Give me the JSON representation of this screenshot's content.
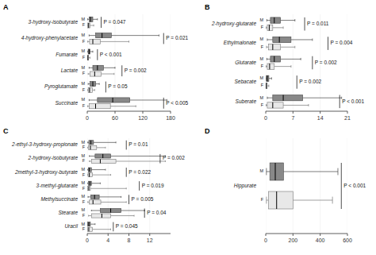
{
  "chart_data": [
    {
      "type": "box",
      "title": "A",
      "orientation": "horizontal",
      "categories": [
        "3-hydroxy-isobutyrate",
        "4-hydroxy-phenylacetate",
        "Fumarate",
        "Lactate",
        "Pyroglutamate",
        "Succinate"
      ],
      "series": [
        {
          "name": "M",
          "color": "#888888",
          "q1": [
            4,
            18,
            2,
            12,
            6,
            22
          ],
          "med": [
            7,
            32,
            4,
            22,
            12,
            55
          ],
          "q3": [
            12,
            52,
            6,
            35,
            18,
            92
          ],
          "whislo": [
            1,
            4,
            0.5,
            4,
            2,
            4
          ],
          "whishi": [
            22,
            155,
            12,
            60,
            26,
            172
          ]
        },
        {
          "name": "F",
          "color": "#e8e8e8",
          "q1": [
            1,
            5,
            0.5,
            6,
            2,
            4
          ],
          "med": [
            3,
            12,
            1.5,
            16,
            5,
            18
          ],
          "q3": [
            6,
            28,
            3,
            30,
            11,
            50
          ],
          "whislo": [
            0.3,
            1,
            0.1,
            2,
            0.5,
            1
          ],
          "whishi": [
            14,
            90,
            6,
            58,
            16,
            105
          ]
        }
      ],
      "annotations": [
        {
          "text": "P = 0.047",
          "x": 30
        },
        {
          "text": "P = 0.021",
          "x": 165
        },
        {
          "text": "P < 0.001",
          "x": 22
        },
        {
          "text": "P = 0.002",
          "x": 75
        },
        {
          "text": "P = 0.05",
          "x": 40
        },
        {
          "text": "P < 0.005",
          "x": 165
        }
      ],
      "xlim": [
        0,
        180
      ],
      "xticks": [
        0,
        60,
        120,
        180
      ]
    },
    {
      "type": "box",
      "title": "B",
      "orientation": "horizontal",
      "categories": [
        "2-hydroxy-glutarate",
        "Ethylmalonate",
        "Glutarate",
        "Sebacate",
        "Suberate"
      ],
      "series": [
        {
          "name": "M",
          "color": "#888888",
          "q1": [
            1.2,
            1.8,
            1.2,
            0.15,
            1.8
          ],
          "med": [
            2.2,
            3.5,
            2.2,
            0.4,
            4.5
          ],
          "q3": [
            3.8,
            6.5,
            3.8,
            0.8,
            9.5
          ],
          "whislo": [
            0.3,
            0.4,
            0.3,
            0.04,
            0.4
          ],
          "whishi": [
            7.5,
            12,
            9,
            1.5,
            19.5
          ]
        },
        {
          "name": "F",
          "color": "#e8e8e8",
          "q1": [
            0.4,
            0.7,
            0.4,
            0.05,
            0.4
          ],
          "med": [
            0.9,
            1.8,
            1.0,
            0.15,
            1.8
          ],
          "q3": [
            1.8,
            3.8,
            2.2,
            0.4,
            4.5
          ],
          "whislo": [
            0.1,
            0.2,
            0.1,
            0.01,
            0.1
          ],
          "whishi": [
            4.5,
            7.5,
            6.5,
            0.8,
            11
          ]
        }
      ],
      "annotations": [
        {
          "text": "P = 0.011",
          "x": 10
        },
        {
          "text": "P = 0.004",
          "x": 16
        },
        {
          "text": "P = 0.002",
          "x": 12
        },
        {
          "text": "P = 0.002",
          "x": 8
        },
        {
          "text": "P < 0.001",
          "x": 19
        }
      ],
      "xlim": [
        0,
        21
      ],
      "xticks": [
        0,
        7,
        14,
        21
      ]
    },
    {
      "type": "box",
      "title": "C",
      "orientation": "horizontal",
      "categories": [
        "2-ethyl-3-hydroxy-propionate",
        "2-hydroxy-isobutyrate",
        "2methyl-3-hydroxy-butyrate",
        "3-methyl-glutarate",
        "Methylsuccinate",
        "Stearate",
        "Uracil"
      ],
      "series": [
        {
          "name": "M",
          "color": "#888888",
          "q1": [
            0.3,
            1.5,
            0.2,
            0.2,
            0.7,
            2.5,
            0.1
          ],
          "med": [
            0.7,
            3,
            0.4,
            0.5,
            1.4,
            4.5,
            0.3
          ],
          "q3": [
            1.2,
            4.5,
            0.8,
            0.8,
            2.3,
            6.5,
            0.6
          ],
          "whislo": [
            0.05,
            0.4,
            0.04,
            0.04,
            0.15,
            0.8,
            0.02
          ],
          "whishi": [
            5.5,
            15,
            3.5,
            2.5,
            6.5,
            11,
            1.5
          ]
        },
        {
          "name": "F",
          "color": "#e8e8e8",
          "q1": [
            0.2,
            0.8,
            0.15,
            0.1,
            0.4,
            0.8,
            0.1
          ],
          "med": [
            0.6,
            2.5,
            0.4,
            0.3,
            1.1,
            2.8,
            0.3
          ],
          "q3": [
            1.8,
            5.5,
            1.0,
            0.6,
            2.6,
            4.5,
            1.0
          ],
          "whislo": [
            0.05,
            0.4,
            0.04,
            0.02,
            0.1,
            0.25,
            0.02
          ],
          "whishi": [
            3.5,
            15,
            4.5,
            7.5,
            7.5,
            9,
            4.5
          ]
        }
      ],
      "annotations": [
        {
          "text": "P = 0.01",
          "x": 7.5
        },
        {
          "text": "P = 0.002",
          "x": 14
        },
        {
          "text": "P = 0.022",
          "x": 7.5
        },
        {
          "text": "P = 0.019",
          "x": 10
        },
        {
          "text": "P = 0.005",
          "x": 8
        },
        {
          "text": "P = 0.04",
          "x": 11
        },
        {
          "text": "P = 0.045",
          "x": 5
        }
      ],
      "xlim": [
        0,
        16
      ],
      "xticks": [
        0,
        4,
        8,
        12
      ]
    },
    {
      "type": "box",
      "title": "D",
      "orientation": "horizontal",
      "categories": [
        "Hippurate"
      ],
      "series": [
        {
          "name": "M",
          "color": "#888888",
          "q1": [
            30
          ],
          "med": [
            70
          ],
          "q3": [
            130
          ],
          "whislo": [
            5
          ],
          "whishi": [
            530
          ]
        },
        {
          "name": "F",
          "color": "#e8e8e8",
          "q1": [
            20
          ],
          "med": [
            80
          ],
          "q3": [
            200
          ],
          "whislo": [
            5
          ],
          "whishi": [
            490
          ]
        }
      ],
      "annotations": [
        {
          "text": "P < 0.001",
          "x": 555
        }
      ],
      "xlim": [
        0,
        600
      ],
      "xticks": [
        0,
        200,
        400,
        600
      ]
    }
  ]
}
